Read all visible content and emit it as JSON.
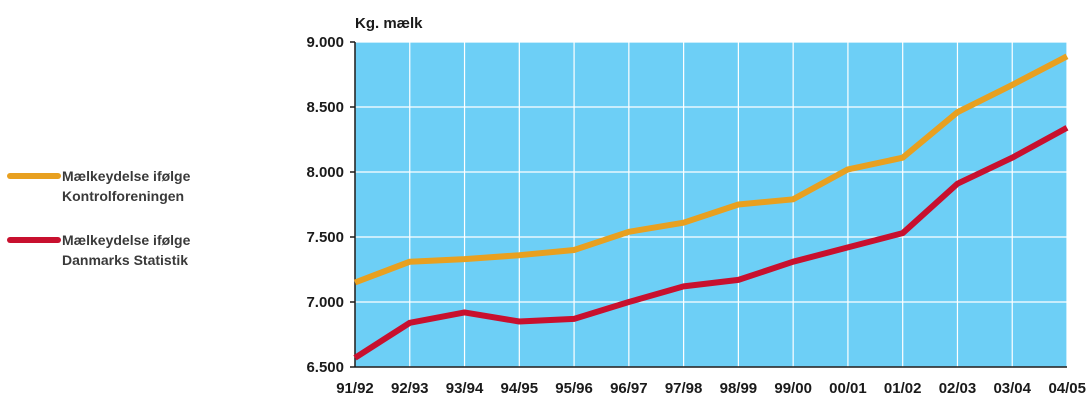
{
  "chart_data": {
    "type": "line",
    "title": "",
    "ylabel": "Kg. mælk",
    "xlabel": "",
    "categories": [
      "91/92",
      "92/93",
      "93/94",
      "94/95",
      "95/96",
      "96/97",
      "97/98",
      "98/99",
      "99/00",
      "00/01",
      "01/02",
      "02/03",
      "03/04",
      "04/05"
    ],
    "ylim": [
      6500,
      9000
    ],
    "yticks": [
      6500,
      7000,
      7500,
      8000,
      8500,
      9000
    ],
    "ytick_labels": [
      "6.500",
      "7.000",
      "7.500",
      "8.000",
      "8.500",
      "9.000"
    ],
    "grid": true,
    "legend_position": "left",
    "plot_background": "#6dcff6",
    "grid_color": "#ffffff",
    "series": [
      {
        "name": "Mælkeydelse ifølge Kontrolforeningen",
        "name_lines": [
          "Mælkeydelse ifølge",
          "Kontrolforeningen"
        ],
        "color": "#e8a020",
        "values": [
          7150,
          7310,
          7330,
          7360,
          7400,
          7540,
          7610,
          7750,
          7790,
          8020,
          8110,
          8460,
          8670,
          8890
        ]
      },
      {
        "name": "Mælkeydelse ifølge Danmarks Statistik",
        "name_lines": [
          "Mælkeydelse ifølge",
          "Danmarks Statistik"
        ],
        "color": "#c8102e",
        "values": [
          6570,
          6840,
          6920,
          6850,
          6870,
          7000,
          7120,
          7170,
          7310,
          7420,
          7530,
          7910,
          8110,
          8340
        ]
      }
    ]
  }
}
